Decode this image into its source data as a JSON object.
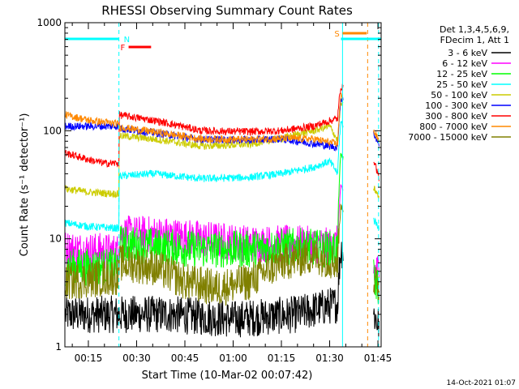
{
  "chart_data": {
    "type": "line",
    "title": "RHESSI Observing Summary Count Rates",
    "xlabel": "Start Time (10-Mar-02 00:07:42)",
    "ylabel": "Count Rate (s⁻¹ detector⁻¹)",
    "yscale": "log",
    "ylim": [
      1,
      1000
    ],
    "xlim_minutes": [
      7.7,
      106
    ],
    "x_ticks": [
      {
        "t": 15,
        "label": "00:15"
      },
      {
        "t": 30,
        "label": "00:30"
      },
      {
        "t": 45,
        "label": "00:45"
      },
      {
        "t": 60,
        "label": "01:00"
      },
      {
        "t": 75,
        "label": "01:15"
      },
      {
        "t": 90,
        "label": "01:30"
      },
      {
        "t": 105,
        "label": "01:45"
      }
    ],
    "y_ticks": [
      {
        "v": 1,
        "label": "1"
      },
      {
        "v": 10,
        "label": "10"
      },
      {
        "v": 100,
        "label": "100"
      },
      {
        "v": 1000,
        "label": "1000"
      }
    ],
    "legend_position": "right",
    "legend_header": [
      "Det 1,3,4,5,6,9,",
      "FDecim 1, Att 1"
    ],
    "footer_date": "14-Oct-2021 01:07",
    "flags": [
      {
        "label": "N",
        "color": "#00ffff",
        "segments": [
          [
            7.7,
            24.5
          ],
          [
            93.5,
            106
          ]
        ]
      },
      {
        "label": "F",
        "color": "#ff0000",
        "segments": [
          [
            27.5,
            34.5
          ]
        ]
      },
      {
        "label": "S",
        "color": "#ff8800",
        "segments": [
          [
            94,
            101.5
          ]
        ]
      }
    ],
    "markers": [
      {
        "t": 24.5,
        "color": "#00ffff",
        "style": "dashed"
      },
      {
        "t": 94.0,
        "color": "#00ffff",
        "style": "solid"
      },
      {
        "t": 101.8,
        "color": "#ff8800",
        "style": "dashed"
      },
      {
        "t": 105.2,
        "color": "#00ffff",
        "style": "dashed"
      }
    ],
    "gaps": [
      [
        94.3,
        103.6
      ]
    ],
    "series": [
      {
        "name": "3 - 6 keV",
        "color": "#000000",
        "t": [
          8,
          24.5,
          24.6,
          40,
          60,
          80,
          92.5,
          93.5,
          103.6,
          105.3
        ],
        "values": [
          2.0,
          2.0,
          2.0,
          2.0,
          1.8,
          2.0,
          2.5,
          8,
          2.0,
          1.6
        ]
      },
      {
        "name": "6 - 12 keV",
        "color": "#ff00ff",
        "t": [
          8,
          24.5,
          24.6,
          35,
          50,
          65,
          80,
          90,
          92.5,
          93.5,
          103.6,
          105.3
        ],
        "values": [
          8.0,
          7.5,
          11.0,
          11.0,
          10.0,
          9.0,
          9.0,
          8.5,
          9.0,
          30,
          5.0,
          5.0
        ]
      },
      {
        "name": "12 - 25 keV",
        "color": "#00ff00",
        "t": [
          8,
          24.5,
          24.6,
          35,
          50,
          65,
          80,
          90,
          92.5,
          93.5,
          103.6,
          105.3
        ],
        "values": [
          5.5,
          5.5,
          9.0,
          8.5,
          8.0,
          8.0,
          8.5,
          8.0,
          8.0,
          60,
          4.5,
          3.5
        ]
      },
      {
        "name": "25 - 50 keV",
        "color": "#00ffff",
        "t": [
          8,
          15,
          24.5,
          24.6,
          35,
          50,
          65,
          75,
          85,
          90,
          92.5,
          93.5,
          103.6,
          105.3
        ],
        "values": [
          14.0,
          13.0,
          12.5,
          38.0,
          40.0,
          36.0,
          37.0,
          40.0,
          46.0,
          52.0,
          40.0,
          120,
          15.0,
          13.0
        ]
      },
      {
        "name": "50 - 100 keV",
        "color": "#cccc00",
        "t": [
          8,
          15,
          24.5,
          24.6,
          35,
          50,
          65,
          75,
          85,
          90,
          92.5,
          93.5,
          103.6,
          105.3
        ],
        "values": [
          29.0,
          27.0,
          26.0,
          90.0,
          84.0,
          72.0,
          75.0,
          85.0,
          100.0,
          110.0,
          80.0,
          180,
          30.0,
          24.0
        ]
      },
      {
        "name": "100 - 300 keV",
        "color": "#0000ff",
        "t": [
          8,
          24.5,
          24.6,
          35,
          50,
          65,
          75,
          85,
          92.5,
          93.5,
          103.6,
          105.3
        ],
        "values": [
          110.0,
          110.0,
          105.0,
          96.0,
          83.0,
          82.0,
          84.0,
          76.0,
          70.0,
          200,
          95.0,
          75.0
        ]
      },
      {
        "name": "300 - 800 keV",
        "color": "#ff0000",
        "t": [
          8,
          15,
          20,
          24.5,
          24.6,
          35,
          50,
          65,
          75,
          85,
          92.5,
          93.5,
          103.6,
          105.3
        ],
        "values": [
          62.0,
          54.0,
          50.0,
          50.0,
          140.0,
          125.0,
          100.0,
          98.0,
          100.0,
          110.0,
          130.0,
          260,
          55.0,
          36.0
        ]
      },
      {
        "name": "800 - 7000 keV",
        "color": "#ff8800",
        "t": [
          8,
          15,
          24.5,
          24.6,
          35,
          50,
          65,
          75,
          85,
          92.5,
          93.5,
          103.6,
          105.3
        ],
        "values": [
          140.0,
          125.0,
          115.0,
          108.0,
          98.0,
          84.0,
          83.0,
          85.0,
          84.0,
          75.0,
          210,
          100.0,
          80.0
        ]
      },
      {
        "name": "7000 - 15000 keV",
        "color": "#808000",
        "t": [
          8,
          24.5,
          24.6,
          35,
          45,
          55,
          65,
          75,
          85,
          92.5,
          93.5,
          103.6,
          105.3
        ],
        "values": [
          4.0,
          4.5,
          6.0,
          5.5,
          4.0,
          3.5,
          4.0,
          6.0,
          7.0,
          6.0,
          20,
          4.0,
          3.5
        ]
      }
    ]
  }
}
